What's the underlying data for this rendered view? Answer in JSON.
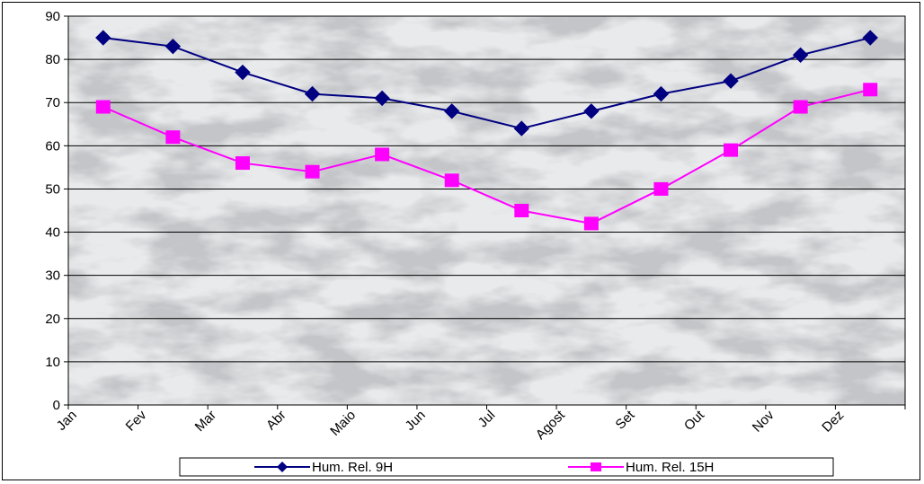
{
  "chart_data": {
    "type": "line",
    "categories": [
      "Jan",
      "Fev",
      "Mar",
      "Abr",
      "Maio",
      "Jun",
      "Jul",
      "Agost",
      "Set",
      "Out",
      "Nov",
      "Dez"
    ],
    "series": [
      {
        "name": "Hum. Rel. 9H",
        "values": [
          85,
          83,
          77,
          72,
          71,
          68,
          64,
          68,
          72,
          75,
          81,
          85
        ],
        "color": "#000080",
        "marker": "diamond"
      },
      {
        "name": "Hum. Rel. 15H",
        "values": [
          69,
          62,
          56,
          54,
          58,
          52,
          45,
          42,
          50,
          59,
          69,
          73
        ],
        "color": "#FF00FF",
        "marker": "square"
      }
    ],
    "ylim": [
      0,
      90
    ],
    "yticks": [
      0,
      10,
      20,
      30,
      40,
      50,
      60,
      70,
      80,
      90
    ],
    "grid": true,
    "legend_position": "bottom",
    "background": "marble texture"
  }
}
